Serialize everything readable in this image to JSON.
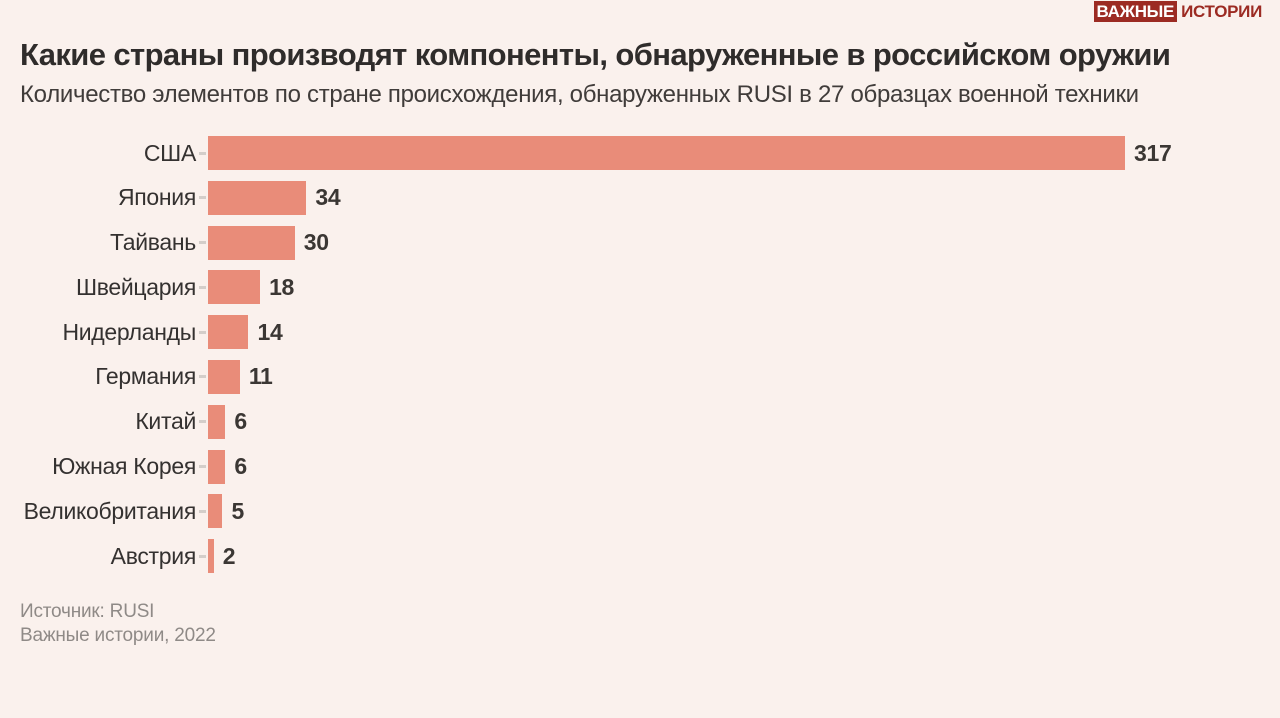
{
  "logo": {
    "part1": "ВАЖНЫЕ",
    "part2": "ИСТОРИИ"
  },
  "header": {
    "title": "Какие страны производят компоненты, обнаруженные в российском оружии",
    "subtitle": "Количество элементов по стране происхождения, обнаруженных RUSI в 27 образцах военной техники"
  },
  "chart_data": {
    "type": "bar",
    "orientation": "horizontal",
    "title": "Какие страны производят компоненты, обнаруженные в российском оружии",
    "subtitle": "Количество элементов по стране происхождения, обнаруженных RUSI в 27 образцах военной техники",
    "categories": [
      "США",
      "Япония",
      "Тайвань",
      "Швейцария",
      "Нидерланды",
      "Германия",
      "Китай",
      "Южная Корея",
      "Великобритания",
      "Австрия"
    ],
    "values": [
      317,
      34,
      30,
      18,
      14,
      11,
      6,
      6,
      5,
      2
    ],
    "xlim": [
      0,
      317
    ],
    "grid": false,
    "legend": false,
    "value_labels": true,
    "bar_color": "#E98C79"
  },
  "footer": {
    "source": "Источник: RUSI",
    "credit": "Важные истории, 2022"
  },
  "colors": {
    "background": "#FAF1ED",
    "bar": "#E98C79",
    "accent_red": "#9C2B23",
    "title_text": "#2F2C2B",
    "label_text": "#343130",
    "muted_text": "#8F8A87",
    "tick": "#D4CECA"
  }
}
